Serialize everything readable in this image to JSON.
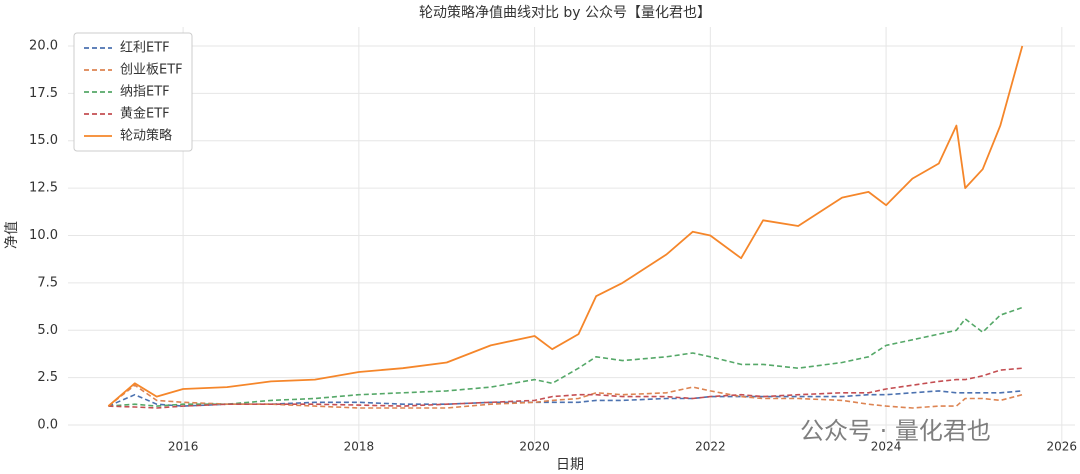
{
  "chart_data": {
    "type": "line",
    "title": "轮动策略净值曲线对比 by 公众号【量化君也】",
    "xlabel": "日期",
    "ylabel": "净值",
    "watermark": "公众号 · 量化君也",
    "x": [
      2015.15,
      2015.45,
      2015.7,
      2016,
      2016.5,
      2017,
      2017.5,
      2018,
      2018.5,
      2019,
      2019.5,
      2020,
      2020.2,
      2020.5,
      2020.7,
      2021,
      2021.5,
      2021.8,
      2022,
      2022.35,
      2022.6,
      2023,
      2023.5,
      2023.8,
      2024,
      2024.3,
      2024.6,
      2024.8,
      2024.9,
      2025.1,
      2025.3,
      2025.55
    ],
    "series": [
      {
        "name": "红利ETF",
        "color": "#4c72b0",
        "dashed": true,
        "values": [
          1.0,
          1.6,
          1.1,
          1.0,
          1.1,
          1.1,
          1.2,
          1.2,
          1.1,
          1.1,
          1.2,
          1.2,
          1.2,
          1.2,
          1.3,
          1.3,
          1.4,
          1.4,
          1.5,
          1.5,
          1.5,
          1.5,
          1.5,
          1.6,
          1.6,
          1.7,
          1.8,
          1.7,
          1.7,
          1.7,
          1.7,
          1.8
        ]
      },
      {
        "name": "创业板ETF",
        "color": "#dd8452",
        "dashed": true,
        "values": [
          1.0,
          2.1,
          1.3,
          1.2,
          1.1,
          1.1,
          1.0,
          0.9,
          0.9,
          0.9,
          1.1,
          1.2,
          1.3,
          1.4,
          1.7,
          1.6,
          1.7,
          2.0,
          1.8,
          1.5,
          1.4,
          1.4,
          1.3,
          1.1,
          1.0,
          0.9,
          1.0,
          1.0,
          1.4,
          1.4,
          1.3,
          1.6
        ]
      },
      {
        "name": "纳指ETF",
        "color": "#55a868",
        "dashed": true,
        "values": [
          1.0,
          1.1,
          1.0,
          1.1,
          1.1,
          1.3,
          1.4,
          1.6,
          1.7,
          1.8,
          2.0,
          2.4,
          2.2,
          3.0,
          3.6,
          3.4,
          3.6,
          3.8,
          3.6,
          3.2,
          3.2,
          3.0,
          3.3,
          3.6,
          4.2,
          4.5,
          4.8,
          5.0,
          5.6,
          4.9,
          5.8,
          6.2
        ]
      },
      {
        "name": "黄金ETF",
        "color": "#c44e52",
        "dashed": true,
        "values": [
          1.0,
          0.95,
          0.9,
          1.0,
          1.1,
          1.1,
          1.1,
          1.05,
          1.0,
          1.1,
          1.2,
          1.3,
          1.5,
          1.6,
          1.6,
          1.5,
          1.5,
          1.4,
          1.5,
          1.6,
          1.5,
          1.6,
          1.7,
          1.7,
          1.9,
          2.1,
          2.3,
          2.4,
          2.4,
          2.6,
          2.9,
          3.0
        ]
      },
      {
        "name": "轮动策略",
        "color": "#f5862a",
        "dashed": false,
        "values": [
          1.0,
          2.2,
          1.5,
          1.9,
          2.0,
          2.3,
          2.4,
          2.8,
          3.0,
          3.3,
          4.2,
          4.7,
          4.0,
          4.8,
          6.8,
          7.5,
          9.0,
          10.2,
          10.0,
          8.8,
          10.8,
          10.5,
          12.0,
          12.3,
          11.6,
          13.0,
          13.8,
          15.8,
          12.5,
          13.5,
          15.8,
          20.0
        ]
      }
    ],
    "xlim": [
      2014.69,
      2026.15
    ],
    "xticks": [
      2016,
      2018,
      2020,
      2022,
      2024,
      2026
    ],
    "ylim": [
      -1,
      21
    ],
    "yticks": [
      {
        "value": 0,
        "label": "0.0"
      },
      2.5,
      {
        "value": 5,
        "label": "5.0"
      },
      7.5,
      {
        "value": 10,
        "label": "10.0"
      },
      12.5,
      {
        "value": 15,
        "label": "15.0"
      },
      17.5,
      {
        "value": 20,
        "label": "20.0"
      }
    ],
    "grid": true,
    "legend": "upper left"
  }
}
